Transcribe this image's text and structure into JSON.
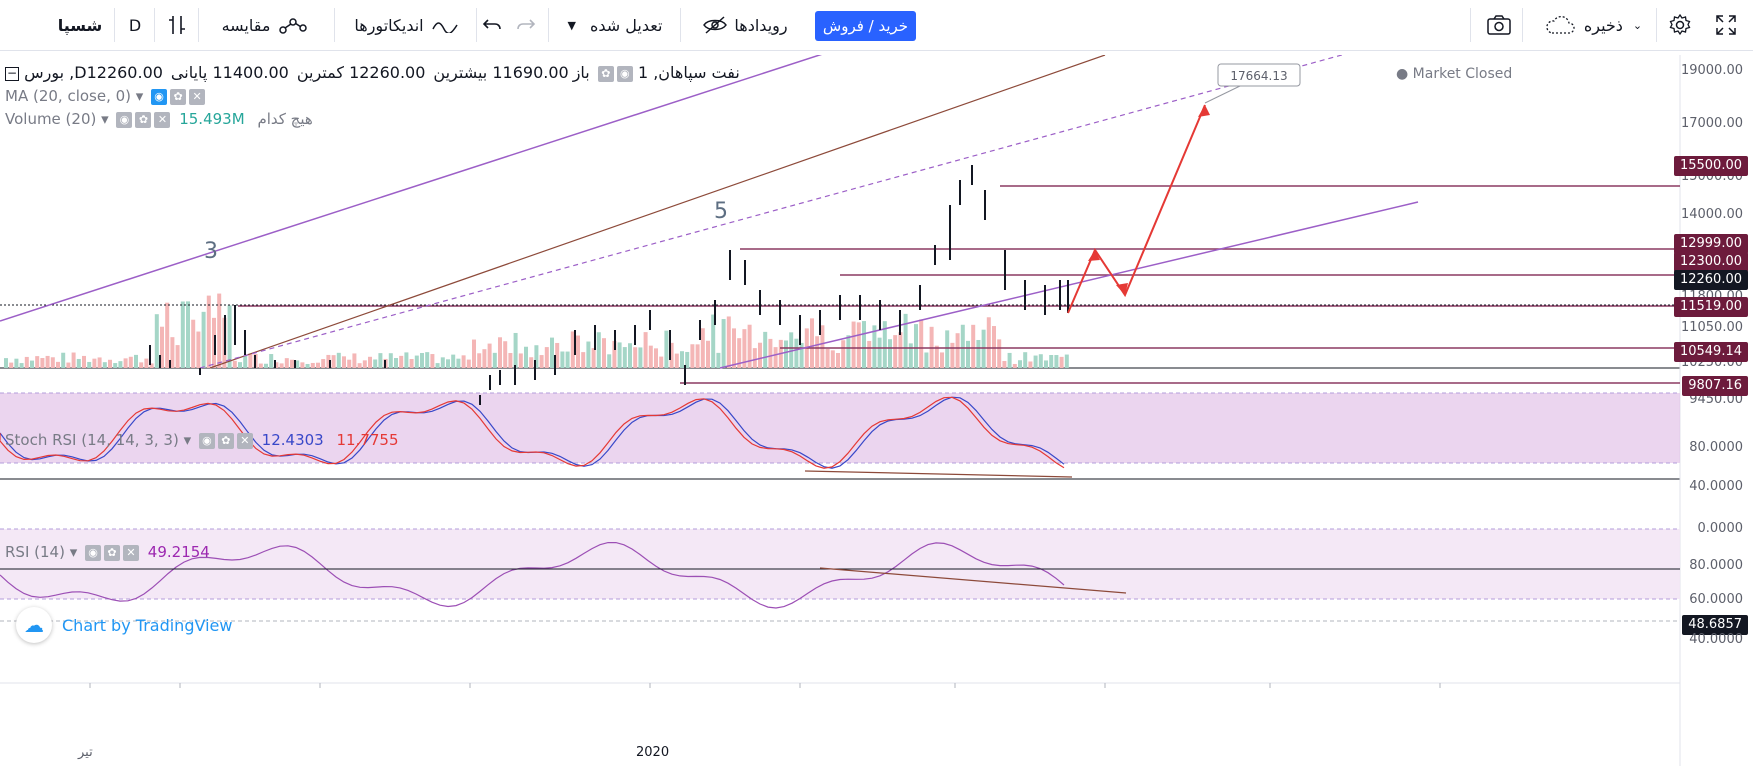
{
  "toolbar": {
    "symbol": "شسپا",
    "interval": "D",
    "compare_label": "مقایسه",
    "indicators_label": "اندیکاتورها",
    "adjusted_label": "تعدیل شده",
    "events_label": "رویدادها",
    "buy_sell_label": "خرید / فروش",
    "save_label": "ذخیره"
  },
  "legend": {
    "main_title": "بورس ,Dنفت سپاهان, 1",
    "open_label": "باز",
    "open_value": "11690.00",
    "high_label": "بیشترین",
    "high_value": "12260.00",
    "low_label": "کمترین",
    "low_value": "11400.00",
    "close_label": "پایانی",
    "close_value": "12260.00",
    "ma_label": "MA (20, close, 0)",
    "volume_label": "Volume (20)",
    "volume_value": "15.493M",
    "volume_extra": "هیچ کدام",
    "stoch_label": "Stoch RSI (14, 14, 3, 3)",
    "stoch_k": "12.4303",
    "stoch_d": "11.7755",
    "rsi_label": "RSI (14)",
    "rsi_value": "49.2154",
    "market_status": "Market Closed"
  },
  "annotations": {
    "wave3": "3",
    "wave5": "5",
    "target": "17664.13"
  },
  "price_axis": [
    "19000.00",
    "17000.00",
    "15000.00",
    "14000.00",
    "11800.00",
    "11050.00",
    "10250.00",
    "9450.00"
  ],
  "price_tags": [
    {
      "value": "15500.00",
      "color": "#6d1b3c"
    },
    {
      "value": "12999.00",
      "color": "#6d1b3c"
    },
    {
      "value": "12300.00",
      "color": "#6d1b3c"
    },
    {
      "value": "12260.00",
      "color": "#131722"
    },
    {
      "value": "11519.00",
      "color": "#6d1b3c"
    },
    {
      "value": "10549.14",
      "color": "#6d1b3c"
    },
    {
      "value": "9807.16",
      "color": "#6d1b3c"
    }
  ],
  "stoch_axis": [
    "80.0000",
    "40.0000",
    "0.0000"
  ],
  "rsi_axis": [
    "80.0000",
    "60.0000",
    "48.6857",
    "40.0000"
  ],
  "time_axis": {
    "left_label": "تیر",
    "year_label": "2020"
  },
  "watermark": "Chart by TradingView",
  "colors": {
    "up": "#26a69a",
    "down": "#ef5350",
    "accent": "#2962ff",
    "level": "#8b3a62",
    "channel": "#9c5fc7",
    "stoch_k": "#3848c9",
    "stoch_d": "#e53935",
    "rsi": "#9c4fb5"
  }
}
